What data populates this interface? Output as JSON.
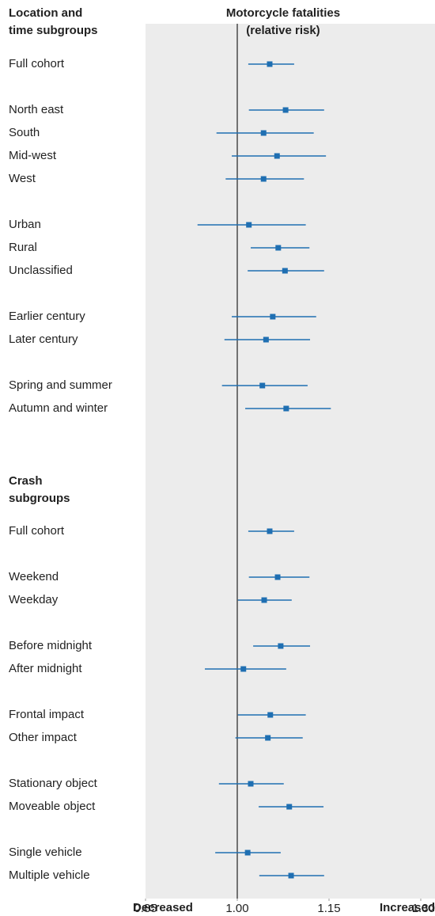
{
  "chart_data": {
    "type": "forest",
    "title": [
      "Motorcycle fatalities",
      "(relative risk)"
    ],
    "color": "#1f6fb2",
    "xlim": [
      0.85,
      1.3
    ],
    "xticks": [
      0.85,
      {
        "value": 1,
        "label": "1.00"
      },
      1.15,
      {
        "value": 1.3,
        "label": "1.30"
      }
    ],
    "axis_labels": [
      "Decreased",
      "Increased"
    ],
    "groups": [
      {
        "heading": [
          "Location and",
          "time subgroups"
        ],
        "subgroups": [
          {
            "categories": [
              "Full cohort"
            ],
            "values": [
              1.053
            ],
            "ci_low": [
              1.018
            ],
            "ci_high": [
              1.093
            ]
          },
          {
            "categories": [
              "North east",
              "South",
              "Mid-west",
              "West"
            ],
            "values": [
              1.079,
              1.043,
              1.065,
              1.043
            ],
            "ci_low": [
              1.019,
              0.966,
              0.991,
              0.981
            ],
            "ci_high": [
              1.142,
              1.125,
              1.145,
              1.109
            ]
          },
          {
            "categories": [
              "Urban",
              "Rural",
              "Unclassified"
            ],
            "values": [
              1.019,
              1.067,
              1.078
            ],
            "ci_low": [
              0.935,
              1.022,
              1.017
            ],
            "ci_high": [
              1.112,
              1.118,
              1.142
            ]
          },
          {
            "categories": [
              "Earlier century",
              "Later century"
            ],
            "values": [
              1.058,
              1.047
            ],
            "ci_low": [
              0.991,
              0.979
            ],
            "ci_high": [
              1.129,
              1.119
            ]
          },
          {
            "categories": [
              "Spring and summer",
              "Autumn and winter"
            ],
            "values": [
              1.041,
              1.08
            ],
            "ci_low": [
              0.975,
              1.013
            ],
            "ci_high": [
              1.115,
              1.153
            ]
          }
        ]
      },
      {
        "heading": [
          "Crash",
          "subgroups"
        ],
        "subgroups": [
          {
            "categories": [
              "Full cohort"
            ],
            "values": [
              1.053
            ],
            "ci_low": [
              1.018
            ],
            "ci_high": [
              1.093
            ]
          },
          {
            "categories": [
              "Weekend",
              "Weekday"
            ],
            "values": [
              1.066,
              1.044
            ],
            "ci_low": [
              1.019,
              1.001
            ],
            "ci_high": [
              1.118,
              1.089
            ]
          },
          {
            "categories": [
              "Before midnight",
              "After midnight"
            ],
            "values": [
              1.071,
              1.01
            ],
            "ci_low": [
              1.026,
              0.947
            ],
            "ci_high": [
              1.119,
              1.08
            ]
          },
          {
            "categories": [
              "Frontal impact",
              "Other impact"
            ],
            "values": [
              1.054,
              1.05
            ],
            "ci_low": [
              1.001,
              0.997
            ],
            "ci_high": [
              1.112,
              1.107
            ]
          },
          {
            "categories": [
              "Stationary object",
              "Moveable object"
            ],
            "values": [
              1.022,
              1.085
            ],
            "ci_low": [
              0.97,
              1.035
            ],
            "ci_high": [
              1.076,
              1.141
            ]
          },
          {
            "categories": [
              "Single vehicle",
              "Multiple vehicle"
            ],
            "values": [
              1.017,
              1.088
            ],
            "ci_low": [
              0.964,
              1.036
            ],
            "ci_high": [
              1.071,
              1.142
            ]
          }
        ]
      }
    ]
  }
}
